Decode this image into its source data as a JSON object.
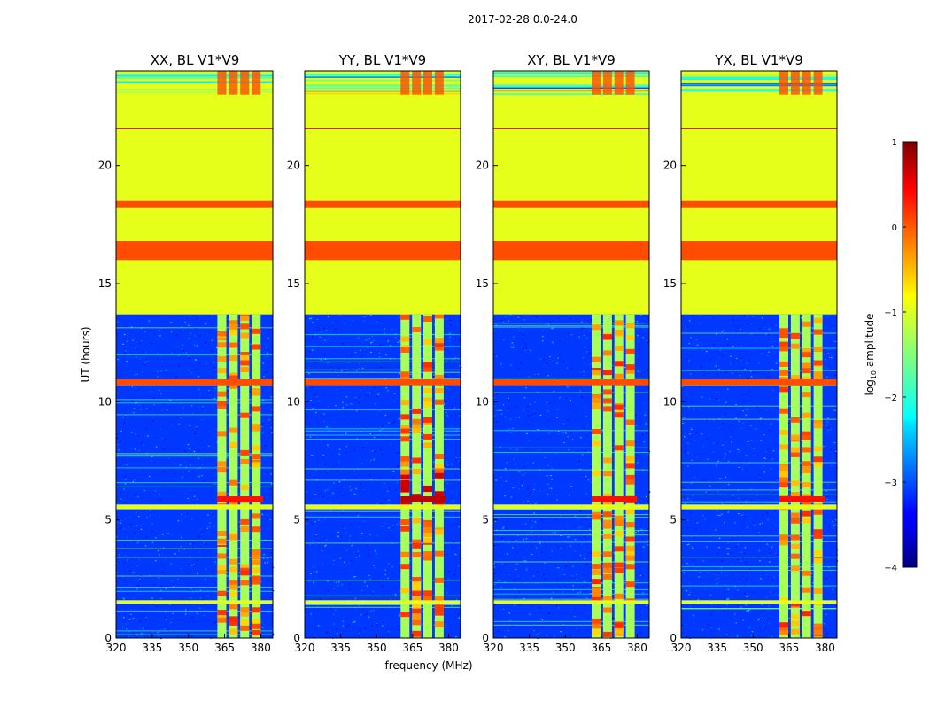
{
  "chart_data": {
    "type": "heatmap",
    "suptitle": "2017-02-28 0.0-24.0",
    "xlabel": "frequency (MHz)",
    "ylabel": "UT (hours)",
    "xlim": [
      320,
      385
    ],
    "ylim": [
      0,
      24
    ],
    "xticks": [
      "320",
      "335",
      "350",
      "365",
      "380"
    ],
    "yticks": [
      "0",
      "5",
      "10",
      "15",
      "20"
    ],
    "panels": [
      {
        "title": "XX, BL V1*V9",
        "band_start": 362,
        "band_end": 381,
        "strong_band": false
      },
      {
        "title": "YY, BL V1*V9",
        "band_start": 360,
        "band_end": 379,
        "strong_band": true
      },
      {
        "title": "XY, BL V1*V9",
        "band_start": 361,
        "band_end": 380,
        "strong_band": false
      },
      {
        "title": "YX, BL V1*V9",
        "band_start": 361,
        "band_end": 380,
        "strong_band": false
      }
    ],
    "colorbar": {
      "label_prefix": "log",
      "label_sub": "10",
      "label_suffix": " amplitude",
      "range": [
        -4,
        1
      ],
      "ticks": [
        "1",
        "0",
        "−1",
        "−2",
        "−3",
        "−4"
      ],
      "colormap": "jet"
    },
    "row_features": [
      {
        "from": 13.7,
        "to": 24.0,
        "level": -1.0,
        "kind": "flagged"
      },
      {
        "from": 16.0,
        "to": 16.8,
        "level": 0.0,
        "kind": "rfi"
      },
      {
        "from": 18.2,
        "to": 18.5,
        "level": 0.0,
        "kind": "rfi"
      },
      {
        "from": 10.7,
        "to": 10.95,
        "level": 0.0,
        "kind": "rfi"
      },
      {
        "from": 5.45,
        "to": 5.65,
        "level": -1.0,
        "kind": "flagged"
      },
      {
        "from": 1.45,
        "to": 1.6,
        "level": -1.0,
        "kind": "flagged"
      }
    ]
  }
}
